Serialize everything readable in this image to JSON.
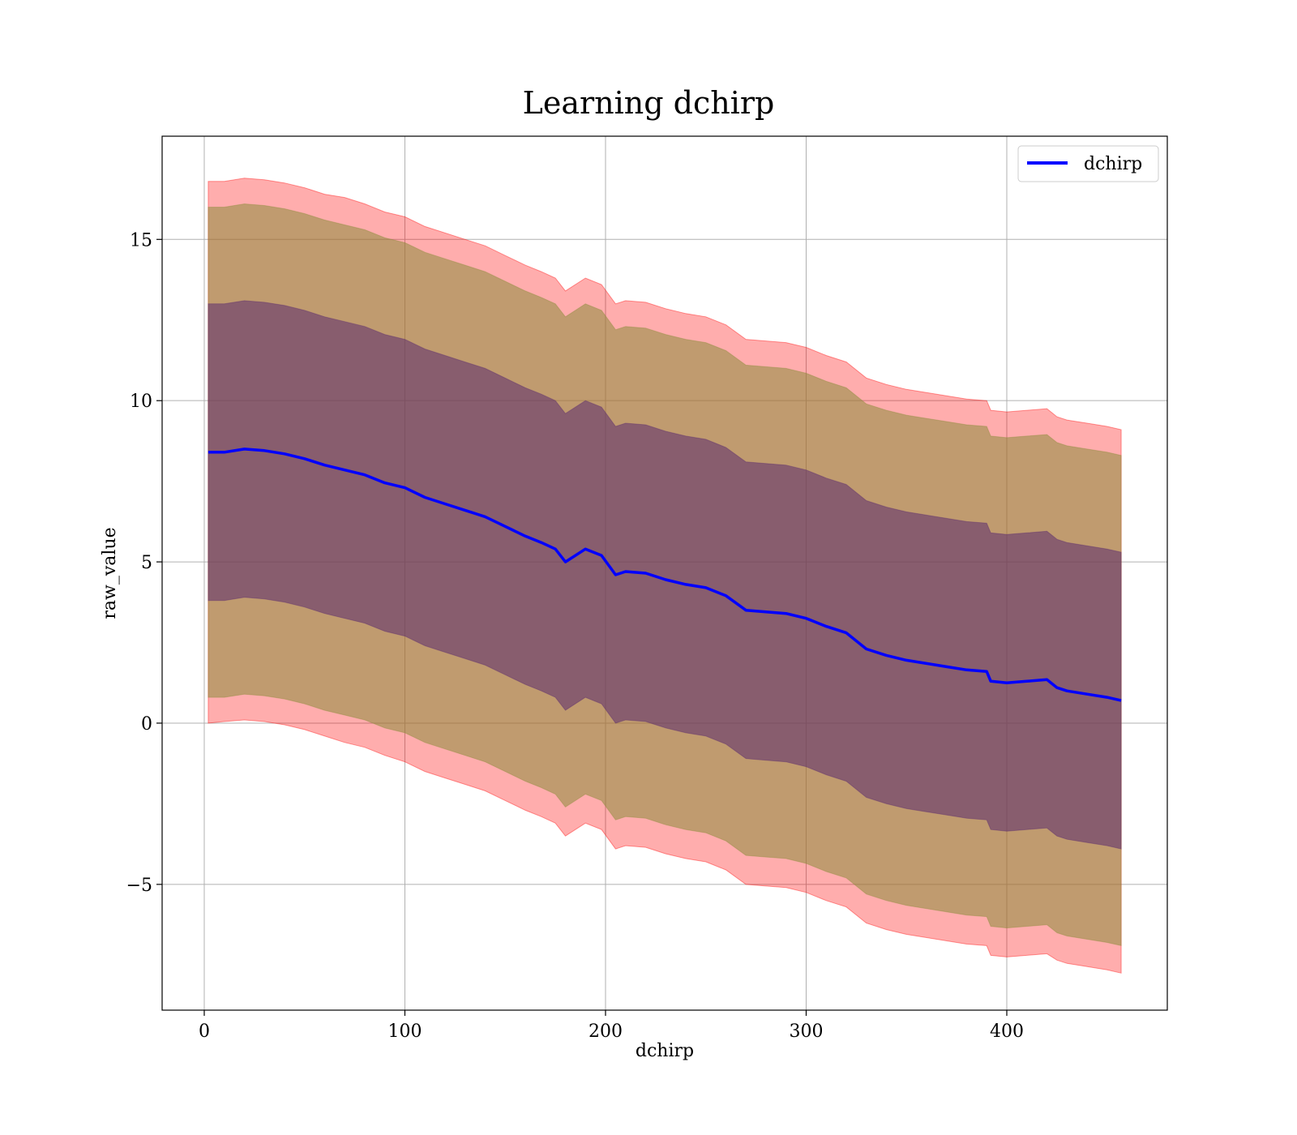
{
  "chart_data": {
    "type": "line",
    "title": "Learning dchirp",
    "xlabel": "dchirp",
    "ylabel": "raw_value",
    "xlim": [
      -21,
      480
    ],
    "ylim": [
      -8.9,
      18.2
    ],
    "xticks": [
      0,
      100,
      200,
      300,
      400
    ],
    "xtick_labels": [
      "0",
      "100",
      "200",
      "300",
      "400"
    ],
    "yticks": [
      -5,
      0,
      5,
      10,
      15
    ],
    "ytick_labels": [
      "−5",
      "0",
      "5",
      "10",
      "15"
    ],
    "grid": true,
    "legend": {
      "placement": "top-right",
      "entries": [
        "dchirp"
      ]
    },
    "colors": {
      "line": "#0000ff",
      "outer_band": "#ff0000",
      "middle_band": "#8c8c3c",
      "inner_band": "#5a2a6e",
      "grid": "#b0b0b0"
    },
    "x": [
      2,
      10,
      20,
      30,
      40,
      50,
      60,
      70,
      80,
      90,
      100,
      110,
      120,
      130,
      140,
      150,
      160,
      168,
      175,
      180,
      190,
      198,
      205,
      210,
      220,
      230,
      240,
      250,
      260,
      270,
      280,
      290,
      300,
      310,
      320,
      330,
      340,
      350,
      360,
      370,
      380,
      390,
      392,
      400,
      410,
      420,
      425,
      430,
      440,
      450,
      457
    ],
    "series": [
      {
        "name": "dchirp",
        "values": [
          8.4,
          8.4,
          8.5,
          8.45,
          8.35,
          8.2,
          8.0,
          7.85,
          7.7,
          7.45,
          7.3,
          7.0,
          6.8,
          6.6,
          6.4,
          6.1,
          5.8,
          5.6,
          5.4,
          5.0,
          5.4,
          5.2,
          4.6,
          4.7,
          4.65,
          4.45,
          4.3,
          4.2,
          3.95,
          3.5,
          3.45,
          3.4,
          3.25,
          3.0,
          2.8,
          2.3,
          2.1,
          1.95,
          1.85,
          1.75,
          1.65,
          1.6,
          1.3,
          1.25,
          1.3,
          1.35,
          1.1,
          1.0,
          0.9,
          0.8,
          0.7
        ]
      },
      {
        "name": "",
        "band": "inner",
        "lower": [
          3.8,
          3.8,
          3.9,
          3.85,
          3.75,
          3.6,
          3.4,
          3.25,
          3.1,
          2.85,
          2.7,
          2.4,
          2.2,
          2.0,
          1.8,
          1.5,
          1.2,
          1.0,
          0.8,
          0.4,
          0.8,
          0.6,
          0.0,
          0.1,
          0.05,
          -0.15,
          -0.3,
          -0.4,
          -0.65,
          -1.1,
          -1.15,
          -1.2,
          -1.35,
          -1.6,
          -1.8,
          -2.3,
          -2.5,
          -2.65,
          -2.75,
          -2.85,
          -2.95,
          -3.0,
          -3.3,
          -3.35,
          -3.3,
          -3.25,
          -3.5,
          -3.6,
          -3.7,
          -3.8,
          -3.9
        ],
        "upper": [
          13.0,
          13.0,
          13.1,
          13.05,
          12.95,
          12.8,
          12.6,
          12.45,
          12.3,
          12.05,
          11.9,
          11.6,
          11.4,
          11.2,
          11.0,
          10.7,
          10.4,
          10.2,
          10.0,
          9.6,
          10.0,
          9.8,
          9.2,
          9.3,
          9.25,
          9.05,
          8.9,
          8.8,
          8.55,
          8.1,
          8.05,
          8.0,
          7.85,
          7.6,
          7.4,
          6.9,
          6.7,
          6.55,
          6.45,
          6.35,
          6.25,
          6.2,
          5.9,
          5.85,
          5.9,
          5.95,
          5.7,
          5.6,
          5.5,
          5.4,
          5.3
        ]
      },
      {
        "name": "",
        "band": "middle",
        "lower": [
          0.8,
          0.8,
          0.9,
          0.85,
          0.75,
          0.6,
          0.4,
          0.25,
          0.1,
          -0.15,
          -0.3,
          -0.6,
          -0.8,
          -1.0,
          -1.2,
          -1.5,
          -1.8,
          -2.0,
          -2.2,
          -2.6,
          -2.2,
          -2.4,
          -3.0,
          -2.9,
          -2.95,
          -3.15,
          -3.3,
          -3.4,
          -3.65,
          -4.1,
          -4.15,
          -4.2,
          -4.35,
          -4.6,
          -4.8,
          -5.3,
          -5.5,
          -5.65,
          -5.75,
          -5.85,
          -5.95,
          -6.0,
          -6.3,
          -6.35,
          -6.3,
          -6.25,
          -6.5,
          -6.6,
          -6.7,
          -6.8,
          -6.9
        ],
        "upper": [
          16.0,
          16.0,
          16.1,
          16.05,
          15.95,
          15.8,
          15.6,
          15.45,
          15.3,
          15.05,
          14.9,
          14.6,
          14.4,
          14.2,
          14.0,
          13.7,
          13.4,
          13.2,
          13.0,
          12.6,
          13.0,
          12.8,
          12.2,
          12.3,
          12.25,
          12.05,
          11.9,
          11.8,
          11.55,
          11.1,
          11.05,
          11.0,
          10.85,
          10.6,
          10.4,
          9.9,
          9.7,
          9.55,
          9.45,
          9.35,
          9.25,
          9.2,
          8.9,
          8.85,
          8.9,
          8.95,
          8.7,
          8.6,
          8.5,
          8.4,
          8.3
        ]
      },
      {
        "name": "",
        "band": "outer",
        "lower": [
          0.0,
          0.05,
          0.1,
          0.05,
          -0.05,
          -0.2,
          -0.4,
          -0.6,
          -0.75,
          -1.0,
          -1.2,
          -1.5,
          -1.7,
          -1.9,
          -2.1,
          -2.4,
          -2.7,
          -2.9,
          -3.1,
          -3.5,
          -3.1,
          -3.3,
          -3.9,
          -3.8,
          -3.85,
          -4.05,
          -4.2,
          -4.3,
          -4.55,
          -5.0,
          -5.05,
          -5.1,
          -5.25,
          -5.5,
          -5.7,
          -6.2,
          -6.4,
          -6.55,
          -6.65,
          -6.75,
          -6.85,
          -6.9,
          -7.2,
          -7.25,
          -7.2,
          -7.15,
          -7.35,
          -7.45,
          -7.55,
          -7.65,
          -7.75
        ],
        "upper": [
          16.8,
          16.8,
          16.9,
          16.85,
          16.75,
          16.6,
          16.4,
          16.3,
          16.1,
          15.85,
          15.7,
          15.4,
          15.2,
          15.0,
          14.8,
          14.5,
          14.2,
          14.0,
          13.8,
          13.4,
          13.8,
          13.6,
          13.0,
          13.1,
          13.05,
          12.85,
          12.7,
          12.6,
          12.35,
          11.9,
          11.85,
          11.8,
          11.65,
          11.4,
          11.2,
          10.7,
          10.5,
          10.35,
          10.25,
          10.15,
          10.05,
          10.0,
          9.7,
          9.65,
          9.7,
          9.75,
          9.5,
          9.4,
          9.3,
          9.2,
          9.1
        ]
      }
    ]
  }
}
